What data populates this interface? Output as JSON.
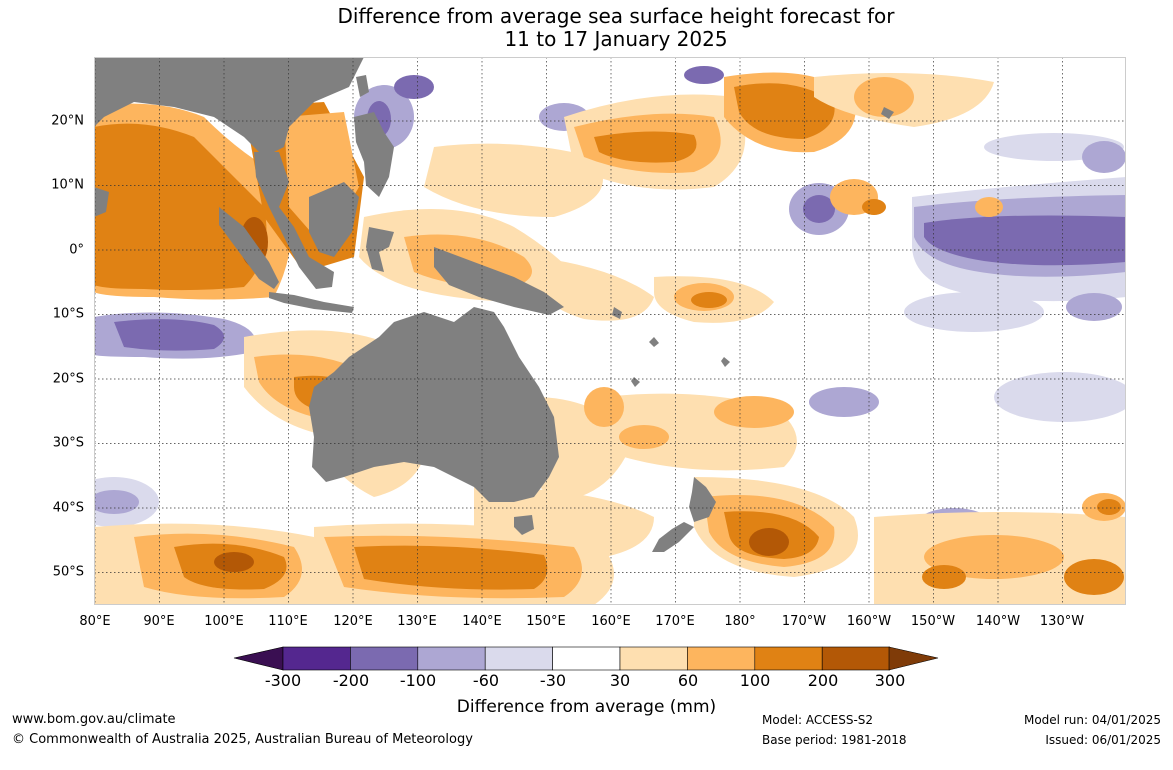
{
  "title_line1": "Difference from average sea surface height forecast for",
  "title_line2": "11 to 17 January 2025",
  "longitude_labels": [
    "80°E",
    "90°E",
    "100°E",
    "110°E",
    "120°E",
    "130°E",
    "140°E",
    "150°E",
    "160°E",
    "170°E",
    "180°",
    "170°W",
    "160°W",
    "150°W",
    "140°W",
    "130°W"
  ],
  "latitude_labels": [
    "20°N",
    "10°N",
    "0°",
    "10°S",
    "20°S",
    "30°S",
    "40°S",
    "50°S"
  ],
  "legend": {
    "title": "Difference from average (mm)",
    "ticks": [
      "-300",
      "-200",
      "-100",
      "-60",
      "-30",
      "30",
      "60",
      "100",
      "200",
      "300"
    ],
    "colors": [
      "#3a0f52",
      "#54278f",
      "#7b6ab0",
      "#ada7d3",
      "#dadaec",
      "#ffffff",
      "#fedfb0",
      "#fdb55e",
      "#e08214",
      "#b35806",
      "#7f3b08"
    ]
  },
  "land_color": "#808080",
  "footer": {
    "website": "www.bom.gov.au/climate",
    "copyright": "© Commonwealth of Australia 2025, Australian Bureau of Meteorology",
    "model": "Model: ACCESS-S2",
    "base_period": "Base period: 1981-2018",
    "model_run": "Model run: 04/01/2025",
    "issued": "Issued: 06/01/2025"
  }
}
